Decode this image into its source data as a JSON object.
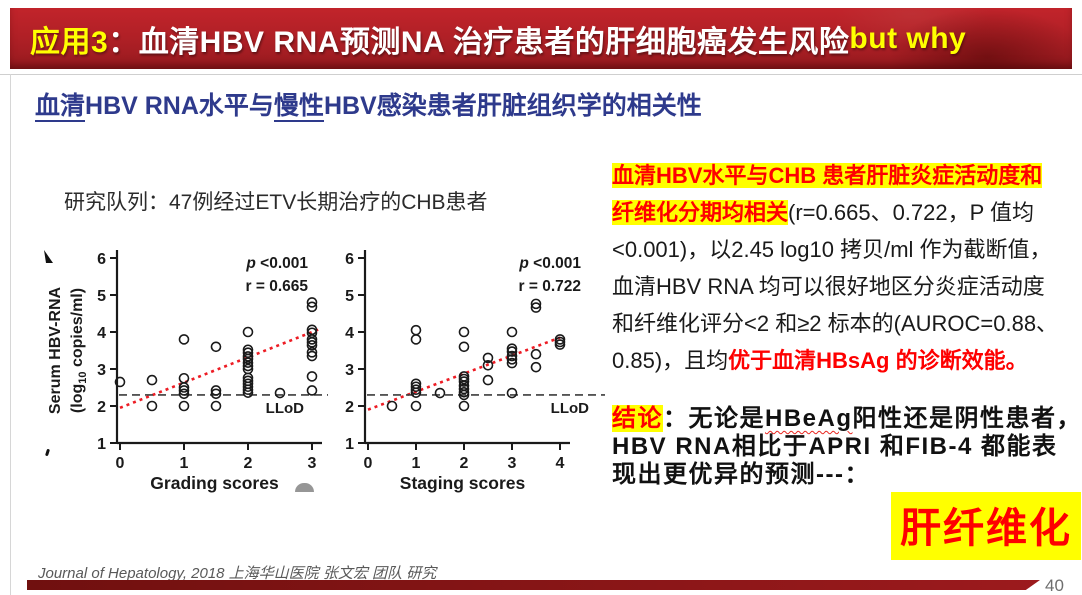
{
  "banner": {
    "prefix": "应用3",
    "colon": "：",
    "title": "血清HBV RNA预测NA 治疗患者的肝细胞癌发生风险",
    "suffix": " but why"
  },
  "subtitle_segments": [
    {
      "t": "血清",
      "c": "blue-u"
    },
    {
      "t": "HBV RNA水平与",
      "c": "blue"
    },
    {
      "t": "慢性",
      "c": "blue-u"
    },
    {
      "t": "HBV感染患者肝脏组织学的相关性",
      "c": "blue"
    }
  ],
  "cohort": "研究队列：47例经过ETV长期治疗的CHB患者",
  "right_panel": {
    "paragraph_lines": [
      [
        {
          "t": "血清HBV水平与CHB 患者肝脏炎症活动度和",
          "c": "hl"
        }
      ],
      [
        {
          "t": "纤维化分期均相关",
          "c": "hl"
        },
        {
          "t": "(r=0.665、0.722，P 值均",
          "c": "n"
        }
      ],
      [
        {
          "t": "<0.001)，以2.45 log10 拷贝/ml 作为截断值，",
          "c": "n"
        }
      ],
      [
        {
          "t": "血清HBV RNA 均可以很好地区分炎症活动度",
          "c": "n"
        }
      ],
      [
        {
          "t": "和纤维化评分<2 和≥2 标本的(AUROC=0.88、",
          "c": "n"
        }
      ],
      [
        {
          "t": "0.85)，且均",
          "c": "n"
        },
        {
          "t": "优于血清HBsAg 的诊断效能。",
          "c": "red"
        }
      ]
    ],
    "conclusion_lines": [
      [
        {
          "t": "结论",
          "c": "hl"
        },
        {
          "t": "：无论是",
          "c": "b"
        },
        {
          "t": "HBeAg",
          "c": "wavy"
        },
        {
          "t": "阳性还是阴性患者，",
          "c": "b"
        }
      ],
      [
        {
          "t": "HBV RNA相比于APRI 和FIB-4 都能表",
          "c": "b"
        }
      ],
      [
        {
          "t": "现出更优异的预测---：",
          "c": "b"
        }
      ]
    ],
    "stamp": "肝纤维化"
  },
  "footer": "Journal of Hepatology, 2018 上海华山医院 张文宏 团队 研究",
  "page_number": "40",
  "colors": {
    "banner_red": "#b02026",
    "accent_yellow": "#ffff00",
    "highlight_red": "#fe0000",
    "subtitle_blue": "#2e3a8c",
    "trend_red": "#ed1c24",
    "bottom_bar_red": "#8b1215"
  },
  "chart_data": [
    {
      "type": "scatter",
      "xlabel": "Grading scores",
      "ylabel": "Serum HBV-RNA (log10 copies/ml)",
      "ylabel_lines": [
        "Serum HBV-RNA",
        "(log10 copies/ml)"
      ],
      "p_label": "p <0.001",
      "r_label": "r = 0.665",
      "xlim": [
        0,
        3
      ],
      "ylim": [
        1,
        6
      ],
      "xticks": [
        0,
        1,
        2,
        3
      ],
      "yticks": [
        6,
        5,
        4,
        3,
        2,
        1
      ],
      "grid": false,
      "llod_value": 2.3,
      "llod_label": "LLoD",
      "trend_line": {
        "x1": 0,
        "y1": 1.95,
        "x2": 3.12,
        "y2": 4.08
      },
      "points": [
        [
          0,
          2.65
        ],
        [
          0.5,
          2.7
        ],
        [
          0.5,
          2.0
        ],
        [
          1,
          3.8
        ],
        [
          1,
          2.75
        ],
        [
          1,
          2.5
        ],
        [
          1,
          2.42
        ],
        [
          1,
          2.33
        ],
        [
          1,
          2.0
        ],
        [
          1.5,
          3.6
        ],
        [
          1.5,
          2.42
        ],
        [
          1.5,
          2.33
        ],
        [
          1.5,
          2.0
        ],
        [
          2,
          4.0
        ],
        [
          2,
          3.52
        ],
        [
          2,
          3.44
        ],
        [
          2,
          3.34
        ],
        [
          2,
          3.27
        ],
        [
          2,
          3.17
        ],
        [
          2,
          3.08
        ],
        [
          2,
          3.0
        ],
        [
          2,
          2.76
        ],
        [
          2,
          2.68
        ],
        [
          2,
          2.6
        ],
        [
          2,
          2.52
        ],
        [
          2,
          2.44
        ],
        [
          2,
          2.36
        ],
        [
          2.5,
          2.35
        ],
        [
          3,
          4.8
        ],
        [
          3,
          4.68
        ],
        [
          3,
          4.06
        ],
        [
          3,
          3.98
        ],
        [
          3,
          3.8
        ],
        [
          3,
          3.72
        ],
        [
          3,
          3.64
        ],
        [
          3,
          3.45
        ],
        [
          3,
          3.35
        ],
        [
          3,
          2.8
        ],
        [
          3,
          2.42
        ]
      ]
    },
    {
      "type": "scatter",
      "xlabel": "Staging scores",
      "ylabel": "",
      "ylabel_lines": [],
      "p_label": "p <0.001",
      "r_label": "r = 0.722",
      "xlim": [
        0,
        4
      ],
      "ylim": [
        1,
        6
      ],
      "xticks": [
        0,
        1,
        2,
        3,
        4
      ],
      "yticks": [
        6,
        5,
        4,
        3,
        2,
        1
      ],
      "grid": false,
      "llod_value": 2.3,
      "llod_label": "LLoD",
      "trend_line": {
        "x1": 0,
        "y1": 1.9,
        "x2": 4,
        "y2": 3.85
      },
      "points": [
        [
          0.5,
          2.0
        ],
        [
          1,
          4.05
        ],
        [
          1,
          3.8
        ],
        [
          1,
          2.6
        ],
        [
          1,
          2.52
        ],
        [
          1,
          2.44
        ],
        [
          1,
          2.36
        ],
        [
          1,
          2.0
        ],
        [
          1.5,
          2.35
        ],
        [
          2,
          4.0
        ],
        [
          2,
          3.6
        ],
        [
          2,
          2.8
        ],
        [
          2,
          2.73
        ],
        [
          2,
          2.66
        ],
        [
          2,
          2.55
        ],
        [
          2,
          2.46
        ],
        [
          2,
          2.37
        ],
        [
          2,
          2.3
        ],
        [
          2,
          2.0
        ],
        [
          2.5,
          3.3
        ],
        [
          2.5,
          3.1
        ],
        [
          2.5,
          2.7
        ],
        [
          3,
          4.0
        ],
        [
          3,
          3.55
        ],
        [
          3,
          3.47
        ],
        [
          3,
          3.35
        ],
        [
          3,
          3.26
        ],
        [
          3,
          3.16
        ],
        [
          3,
          2.35
        ],
        [
          3.5,
          4.76
        ],
        [
          3.5,
          4.66
        ],
        [
          3.5,
          3.4
        ],
        [
          3.5,
          3.05
        ],
        [
          4,
          3.8
        ],
        [
          4,
          3.73
        ],
        [
          4,
          3.66
        ]
      ]
    }
  ]
}
